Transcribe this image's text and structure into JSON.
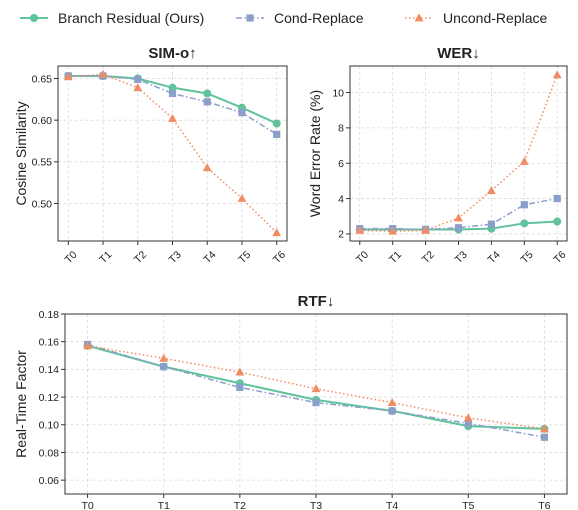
{
  "colors": {
    "branch": "#5fc39b",
    "cond": "#8b9fcb",
    "uncond": "#f08c62"
  },
  "legend": [
    {
      "key": "branch",
      "label": "Branch Residual (Ours)"
    },
    {
      "key": "cond",
      "label": "Cond-Replace"
    },
    {
      "key": "uncond",
      "label": "Uncond-Replace"
    }
  ],
  "chart_data": [
    {
      "type": "line",
      "title": "SIM-o↑",
      "xlabel": "",
      "ylabel": "Cosine Similarity",
      "categories": [
        "T0",
        "T1",
        "T2",
        "T3",
        "T4",
        "T5",
        "T6"
      ],
      "ylim": [
        0.455,
        0.665
      ],
      "yticks": [
        0.5,
        0.55,
        0.6,
        0.65
      ],
      "ytick_labels": [
        "0.50",
        "0.55",
        "0.60",
        "0.65"
      ],
      "grid": true,
      "series": [
        {
          "name": "Branch Residual (Ours)",
          "key": "branch",
          "marker": "circle",
          "line": "solid",
          "values": [
            0.653,
            0.653,
            0.65,
            0.639,
            0.632,
            0.615,
            0.596
          ]
        },
        {
          "name": "Cond-Replace",
          "key": "cond",
          "marker": "square",
          "line": "dashdot",
          "values": [
            0.653,
            0.653,
            0.649,
            0.632,
            0.622,
            0.609,
            0.583
          ]
        },
        {
          "name": "Uncond-Replace",
          "key": "uncond",
          "marker": "triangle",
          "line": "dotted",
          "values": [
            0.652,
            0.655,
            0.639,
            0.602,
            0.543,
            0.506,
            0.465
          ]
        }
      ]
    },
    {
      "type": "line",
      "title": "WER↓",
      "xlabel": "",
      "ylabel": "Word Error Rate (%)",
      "categories": [
        "T0",
        "T1",
        "T2",
        "T3",
        "T4",
        "T5",
        "T6"
      ],
      "ylim": [
        1.6,
        11.5
      ],
      "yticks": [
        2,
        4,
        6,
        8,
        10
      ],
      "ytick_labels": [
        "2",
        "4",
        "6",
        "8",
        "10"
      ],
      "grid": true,
      "series": [
        {
          "name": "Branch Residual (Ours)",
          "key": "branch",
          "marker": "circle",
          "line": "solid",
          "values": [
            2.25,
            2.25,
            2.25,
            2.25,
            2.3,
            2.6,
            2.7
          ]
        },
        {
          "name": "Cond-Replace",
          "key": "cond",
          "marker": "square",
          "line": "dashdot",
          "values": [
            2.3,
            2.3,
            2.25,
            2.35,
            2.55,
            3.65,
            4.0
          ]
        },
        {
          "name": "Uncond-Replace",
          "key": "uncond",
          "marker": "triangle",
          "line": "dotted",
          "values": [
            2.2,
            2.15,
            2.2,
            2.9,
            4.45,
            6.1,
            11.0
          ]
        }
      ]
    },
    {
      "type": "line",
      "title": "RTF↓",
      "xlabel": "",
      "ylabel": "Real-Time Factor",
      "categories": [
        "T0",
        "T1",
        "T2",
        "T3",
        "T4",
        "T5",
        "T6"
      ],
      "ylim": [
        0.05,
        0.18
      ],
      "yticks": [
        0.06,
        0.08,
        0.1,
        0.12,
        0.14,
        0.16,
        0.18
      ],
      "ytick_labels": [
        "0.06",
        "0.08",
        "0.10",
        "0.12",
        "0.14",
        "0.16",
        "0.18"
      ],
      "grid": true,
      "series": [
        {
          "name": "Branch Residual (Ours)",
          "key": "branch",
          "marker": "circle",
          "line": "solid",
          "values": [
            0.157,
            0.142,
            0.13,
            0.118,
            0.11,
            0.099,
            0.097
          ]
        },
        {
          "name": "Cond-Replace",
          "key": "cond",
          "marker": "square",
          "line": "dashdot",
          "values": [
            0.158,
            0.142,
            0.127,
            0.116,
            0.11,
            0.101,
            0.091
          ]
        },
        {
          "name": "Uncond-Replace",
          "key": "uncond",
          "marker": "triangle",
          "line": "dotted",
          "values": [
            0.157,
            0.148,
            0.138,
            0.126,
            0.116,
            0.105,
            0.097
          ]
        }
      ]
    }
  ]
}
